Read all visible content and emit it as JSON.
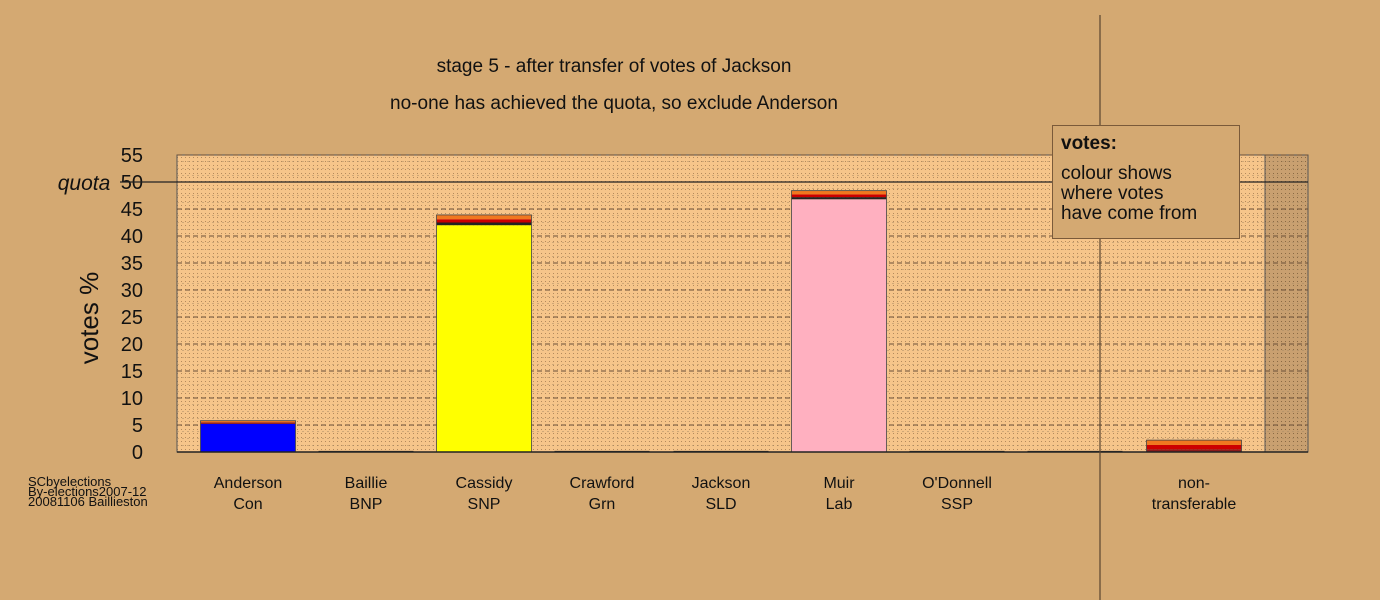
{
  "chart_data": {
    "type": "bar",
    "title": "stage 5 - after transfer of votes of Jackson",
    "subtitle": "no-one has achieved the quota, so exclude Anderson",
    "ylabel": "votes %",
    "ylim": [
      0,
      55
    ],
    "yticks": [
      0,
      5,
      10,
      15,
      20,
      25,
      30,
      35,
      40,
      45,
      50,
      55
    ],
    "quota": 50,
    "quota_label": "quota",
    "categories": [
      {
        "name": "Anderson",
        "party": "Con"
      },
      {
        "name": "Baillie",
        "party": "BNP"
      },
      {
        "name": "Cassidy",
        "party": "SNP"
      },
      {
        "name": "Crawford",
        "party": "Grn"
      },
      {
        "name": "Jackson",
        "party": "SLD"
      },
      {
        "name": "Muir",
        "party": "Lab"
      },
      {
        "name": "O'Donnell",
        "party": "SSP"
      },
      {
        "name": "",
        "party": ""
      },
      {
        "name": "non-",
        "party": "transferable"
      }
    ],
    "stacks": [
      [
        {
          "value": 5.2,
          "color": "#0000ff"
        },
        {
          "value": 0.3,
          "color": "#8b1a1a"
        },
        {
          "value": 0.3,
          "color": "#f07820"
        }
      ],
      [],
      [
        {
          "value": 42.0,
          "color": "#ffff00"
        },
        {
          "value": 0.5,
          "color": "#222222"
        },
        {
          "value": 0.6,
          "color": "#cc0000"
        },
        {
          "value": 0.8,
          "color": "#f07820"
        }
      ],
      [],
      [],
      [
        {
          "value": 46.8,
          "color": "#ffb0c0"
        },
        {
          "value": 0.4,
          "color": "#222222"
        },
        {
          "value": 0.5,
          "color": "#cc0000"
        },
        {
          "value": 0.7,
          "color": "#f07820"
        }
      ],
      [],
      [],
      [
        {
          "value": 0.5,
          "color": "#8b1a1a"
        },
        {
          "value": 0.8,
          "color": "#cc0000"
        },
        {
          "value": 0.9,
          "color": "#f07820"
        }
      ]
    ],
    "legend": {
      "title": "votes:",
      "lines": [
        "colour shows",
        "where votes",
        "have come from"
      ],
      "placement": "top-right"
    },
    "colors": {
      "background": "#d4a972",
      "plot_fill": "#f6c58a",
      "excluded_fill": "#c9a070"
    }
  },
  "credits": [
    "SCbyelections",
    "By-elections2007-12",
    "20081106 Baillieston"
  ]
}
